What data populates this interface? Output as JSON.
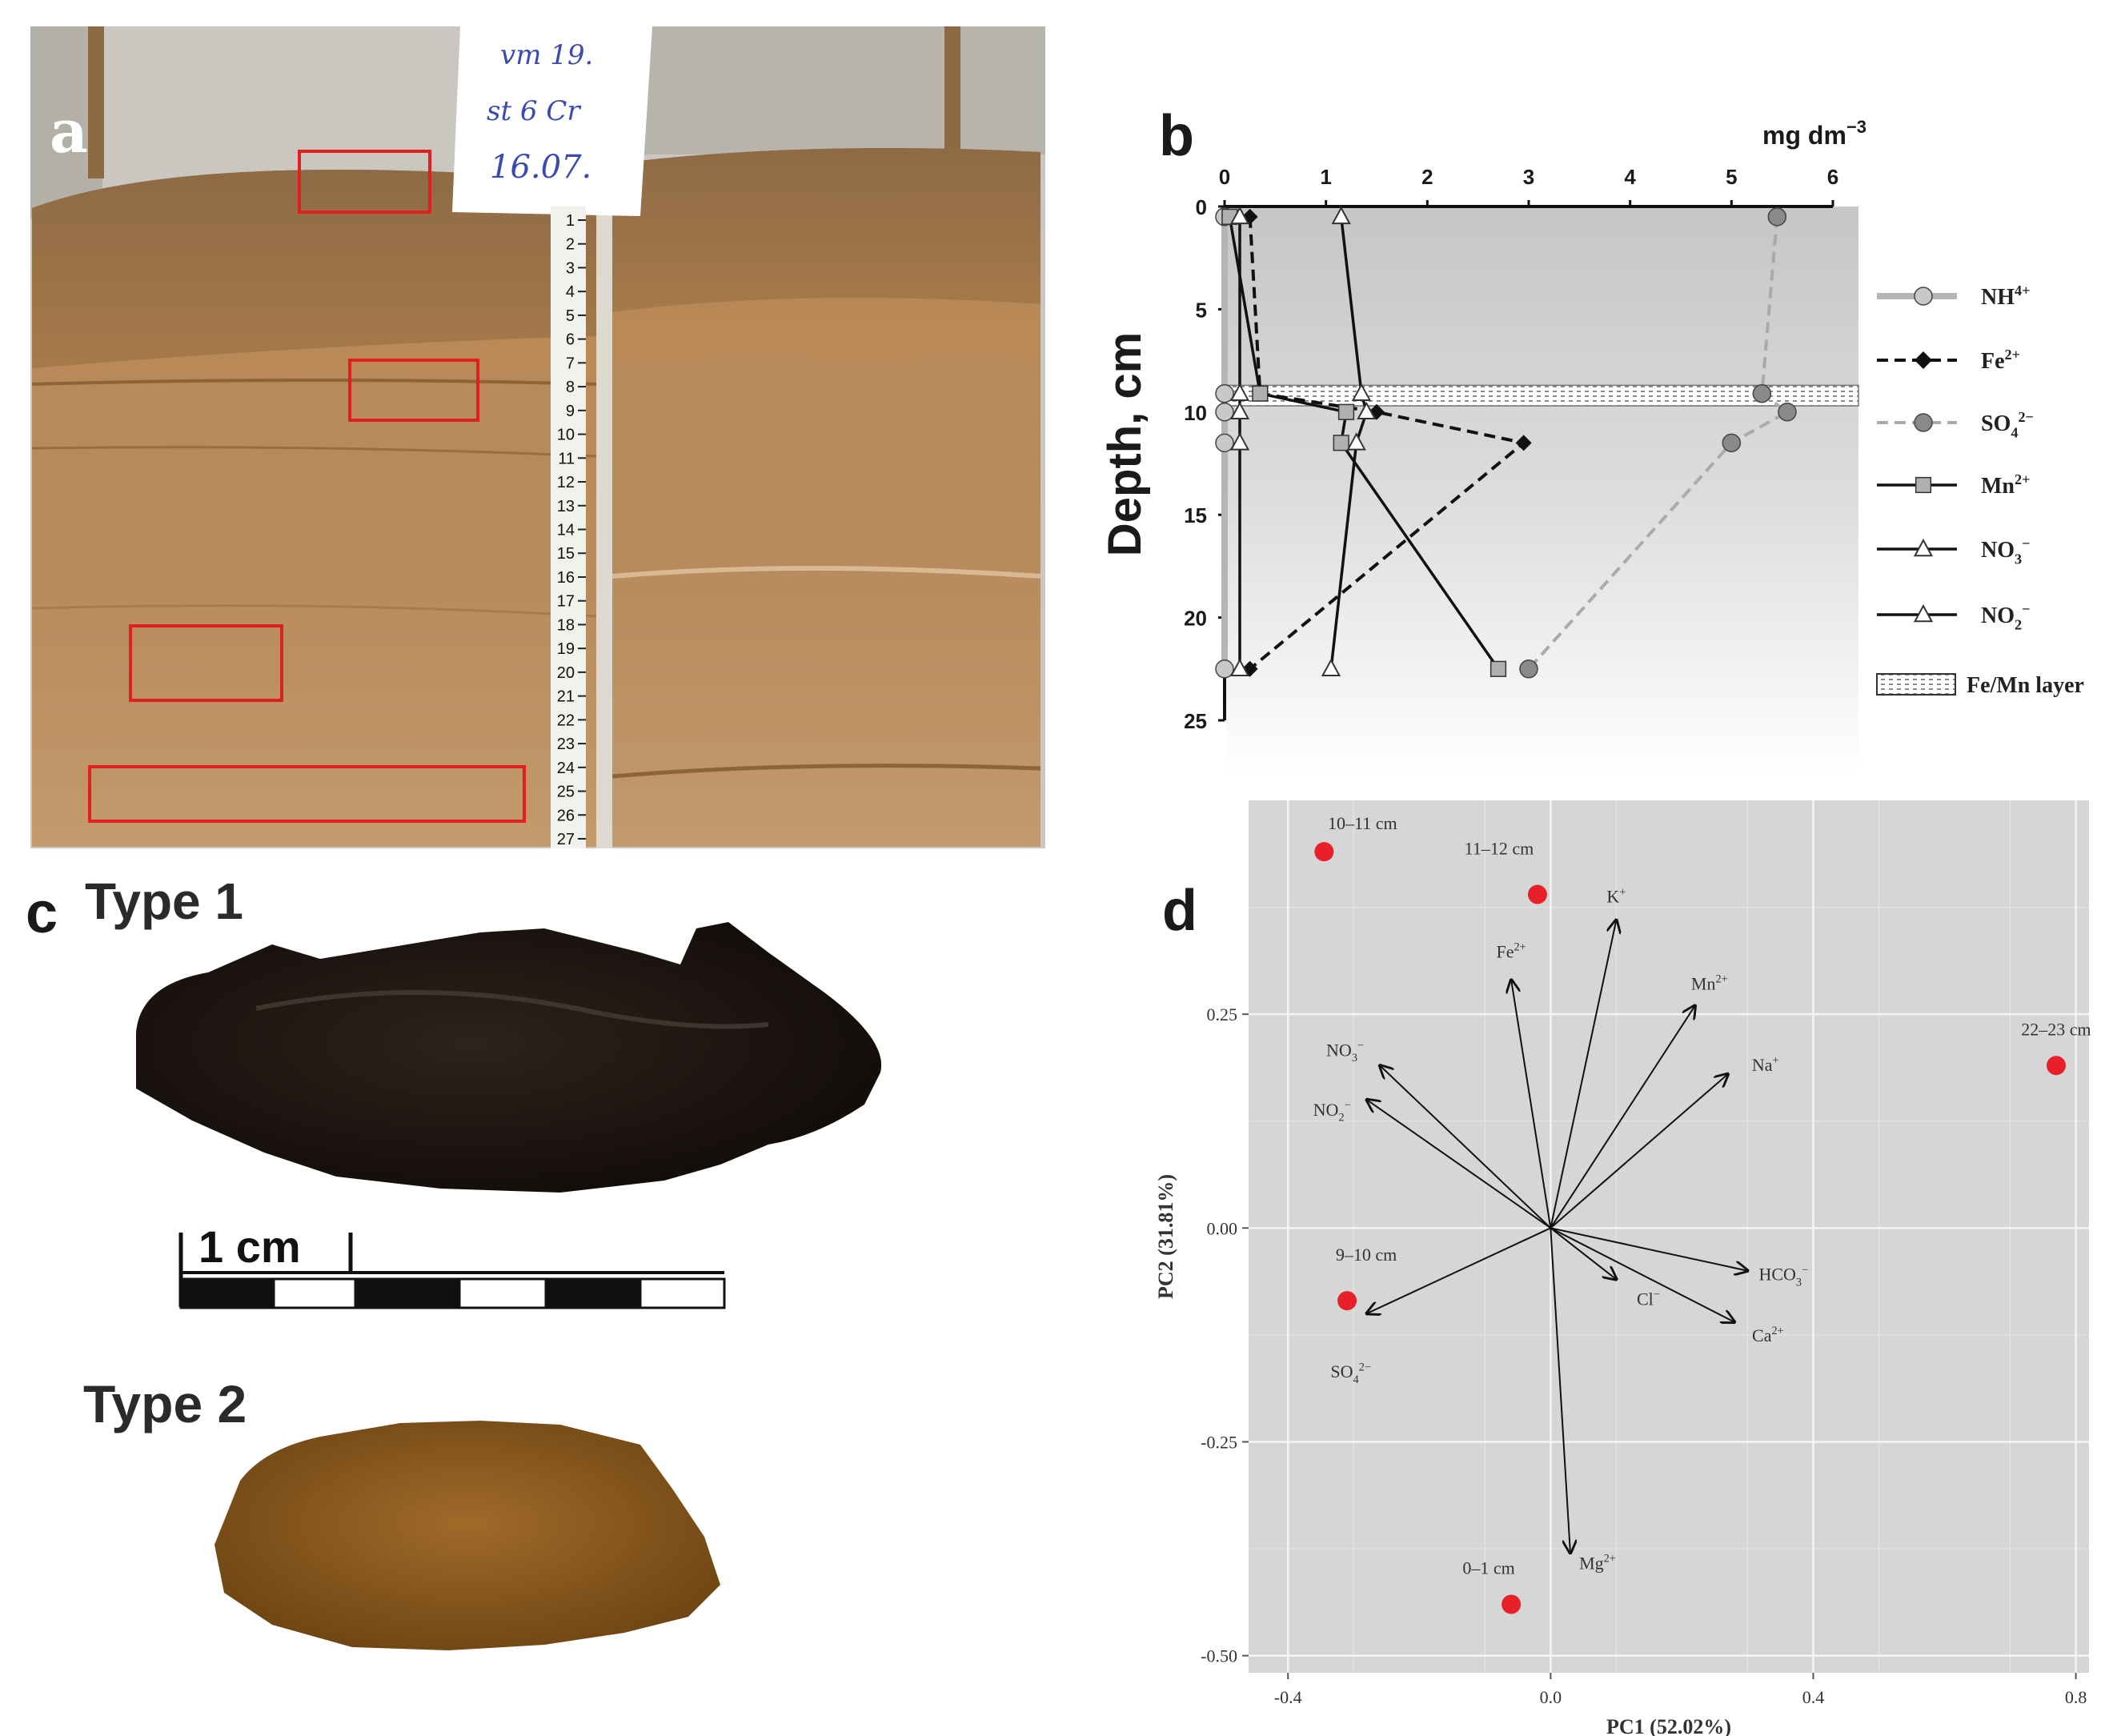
{
  "panels": {
    "a": {
      "letter": "a",
      "note": [
        "vm 19.",
        "st 6 Cr",
        "16.07."
      ],
      "ruler_ticks": [
        "1",
        "2",
        "3",
        "4",
        "5",
        "6",
        "7",
        "8",
        "9",
        "10",
        "11",
        "12",
        "13",
        "14",
        "15",
        "16",
        "17",
        "18",
        "19",
        "20",
        "21",
        "22",
        "23",
        "24",
        "25",
        "26",
        "27"
      ],
      "colors": {
        "sediment": "#b98a58",
        "sediment_dark": "#8f6338",
        "wall": "#c9c7c0",
        "box": "#e01f1f"
      }
    },
    "b": {
      "letter": "b",
      "unit": "mg dm",
      "unit_exp": "−3",
      "y_label": "Depth, cm",
      "fe_mn_label": "Fe/Mn layer"
    },
    "c": {
      "letter": "c",
      "type1": "Type 1",
      "type2": "Type 2",
      "scale_label": "1 cm",
      "colors": {
        "type1": "#1c1410",
        "type2": "#8b5a1d"
      }
    },
    "d": {
      "letter": "d"
    }
  },
  "chart_data": [
    {
      "type": "line",
      "panel": "b",
      "x_ticks": [
        0,
        1,
        2,
        3,
        4,
        5,
        6
      ],
      "y_ticks": [
        0,
        5,
        10,
        15,
        20,
        25
      ],
      "xlim": [
        0,
        6
      ],
      "ylim": [
        0,
        25
      ],
      "ylabel": "Depth, cm",
      "xlabel": "mg dm−3",
      "fe_mn_layer_depth": [
        8.7,
        9.7
      ],
      "legend_position": "right",
      "series": [
        {
          "name": "NH",
          "sup": "4+",
          "style": "solid-thick-lightgray",
          "marker": "circle",
          "color": "#b5b5b5",
          "points": [
            [
              0.0,
              0.5
            ],
            [
              0.0,
              9.1
            ],
            [
              0.0,
              10.0
            ],
            [
              0.0,
              11.5
            ],
            [
              0.0,
              22.5
            ]
          ]
        },
        {
          "name": "Fe",
          "sup": "2+",
          "style": "dashed-black",
          "marker": "diamond",
          "color": "#111111",
          "points": [
            [
              0.25,
              0.5
            ],
            [
              0.35,
              9.1
            ],
            [
              1.5,
              10.0
            ],
            [
              2.95,
              11.5
            ],
            [
              0.25,
              22.5
            ]
          ]
        },
        {
          "name": "SO",
          "sub": "4",
          "sup": "2−",
          "style": "dashed-gray",
          "marker": "circle",
          "color": "#888888",
          "points": [
            [
              5.45,
              0.5
            ],
            [
              5.3,
              9.1
            ],
            [
              5.55,
              10.0
            ],
            [
              5.0,
              11.5
            ],
            [
              3.0,
              22.5
            ]
          ]
        },
        {
          "name": "Mn",
          "sup": "2+",
          "style": "solid-black",
          "marker": "square",
          "color": "#111111",
          "points": [
            [
              0.05,
              0.5
            ],
            [
              0.35,
              9.1
            ],
            [
              1.2,
              10.0
            ],
            [
              1.15,
              11.5
            ],
            [
              2.7,
              22.5
            ]
          ]
        },
        {
          "name": "NO",
          "sub": "3",
          "sup": "−",
          "style": "solid-black",
          "marker": "triangle",
          "color": "#111111",
          "points": [
            [
              1.15,
              0.5
            ],
            [
              1.35,
              9.1
            ],
            [
              1.4,
              10.0
            ],
            [
              1.3,
              11.5
            ],
            [
              1.05,
              22.5
            ]
          ]
        },
        {
          "name": "NO",
          "sub": "2",
          "sup": "−",
          "style": "solid-black",
          "marker": "triangle",
          "color": "#111111",
          "points": [
            [
              0.15,
              0.5
            ],
            [
              0.15,
              9.1
            ],
            [
              0.15,
              10.0
            ],
            [
              0.15,
              11.5
            ],
            [
              0.15,
              22.5
            ]
          ]
        }
      ]
    },
    {
      "type": "scatter",
      "panel": "d",
      "xlabel": "PC1 (52.02%)",
      "ylabel": "PC2 (31.81%)",
      "xlim": [
        -0.46,
        0.82
      ],
      "ylim": [
        -0.52,
        0.5
      ],
      "x_ticks": [
        -0.4,
        0.0,
        0.4,
        0.8
      ],
      "x_tick_labels": [
        "-0.4",
        "0.0",
        "0.4",
        "0.8"
      ],
      "y_ticks": [
        -0.5,
        -0.25,
        0.0,
        0.25
      ],
      "y_tick_labels": [
        "-0.50",
        "-0.25",
        "0.00",
        "0.25"
      ],
      "grid": true,
      "background": "#d6d6d6",
      "point_color": "#e8202a",
      "points": [
        {
          "label": "10–11 cm",
          "x": -0.345,
          "y": 0.44
        },
        {
          "label": "11–12 cm",
          "x": -0.02,
          "y": 0.39
        },
        {
          "label": "22–23 cm",
          "x": 0.77,
          "y": 0.19
        },
        {
          "label": "9–10 cm",
          "x": -0.31,
          "y": -0.085
        },
        {
          "label": "0–1 cm",
          "x": -0.06,
          "y": -0.44
        }
      ],
      "vectors": [
        {
          "name": "K",
          "sup": "+",
          "x": 0.1,
          "y": 0.36
        },
        {
          "name": "Fe",
          "sup": "2+",
          "x": -0.06,
          "y": 0.29
        },
        {
          "name": "Mn",
          "sup": "2+",
          "x": 0.22,
          "y": 0.26
        },
        {
          "name": "Na",
          "sup": "+",
          "x": 0.27,
          "y": 0.18
        },
        {
          "name": "NO",
          "sub": "3",
          "sup": "−",
          "x": -0.26,
          "y": 0.19
        },
        {
          "name": "NO",
          "sub": "2",
          "sup": "−",
          "x": -0.28,
          "y": 0.15
        },
        {
          "name": "HCO",
          "sub": "3",
          "sup": "−",
          "x": 0.3,
          "y": -0.05
        },
        {
          "name": "Cl",
          "sup": "−",
          "x": 0.1,
          "y": -0.06
        },
        {
          "name": "Ca",
          "sup": "2+",
          "x": 0.28,
          "y": -0.11
        },
        {
          "name": "SO",
          "sub": "4",
          "sup": "2−",
          "x": -0.28,
          "y": -0.1
        },
        {
          "name": "Mg",
          "sup": "2+",
          "x": 0.03,
          "y": -0.38
        }
      ]
    }
  ]
}
